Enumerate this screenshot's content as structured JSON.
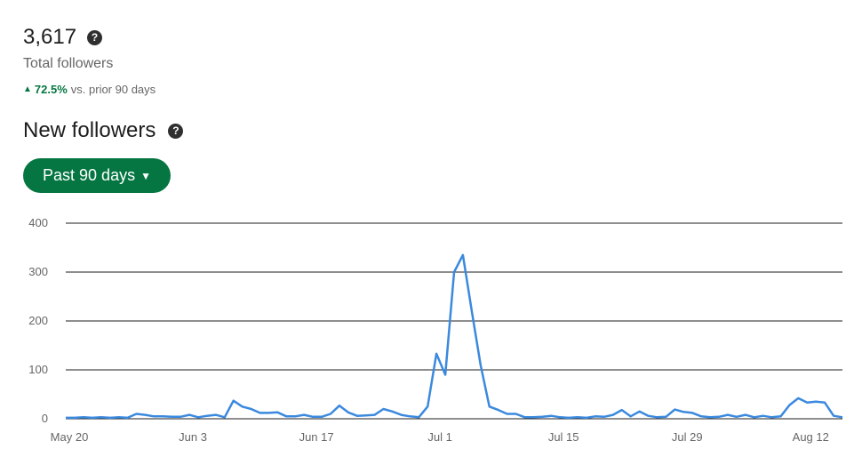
{
  "summary": {
    "total_value": "3,617",
    "total_label": "Total followers",
    "change_pct": "72.5%",
    "change_text": "vs. prior 90 days",
    "help_glyph": "?"
  },
  "section": {
    "title": "New followers",
    "range_button": "Past 90 days"
  },
  "chart_data": {
    "type": "line",
    "color": "#3b89de",
    "ylim": [
      0,
      400
    ],
    "yticks": [
      "400",
      "300",
      "200",
      "100",
      "0"
    ],
    "ytick_values": [
      400,
      300,
      200,
      100,
      0
    ],
    "xticks": [
      "May 20",
      "Jun 3",
      "Jun 17",
      "Jul 1",
      "Jul 15",
      "Jul 29",
      "Aug 12"
    ],
    "xtick_days": [
      0,
      14,
      28,
      42,
      56,
      70,
      84
    ],
    "series": [
      {
        "values": [
          2,
          2,
          3,
          2,
          3,
          2,
          3,
          2,
          10,
          8,
          5,
          5,
          4,
          4,
          8,
          3,
          6,
          8,
          3,
          37,
          25,
          20,
          12,
          12,
          13,
          5,
          5,
          8,
          4,
          4,
          10,
          27,
          13,
          6,
          7,
          8,
          20,
          15,
          8,
          5,
          3,
          25,
          133,
          90,
          300,
          335,
          220,
          110,
          25,
          18,
          10,
          10,
          3,
          3,
          4,
          6,
          3,
          2,
          3,
          2,
          5,
          4,
          8,
          18,
          5,
          15,
          6,
          3,
          4,
          19,
          14,
          12,
          5,
          3,
          4,
          8,
          4,
          8,
          3,
          6,
          3,
          5,
          28,
          42,
          33,
          35,
          33,
          6,
          3
        ]
      }
    ]
  }
}
